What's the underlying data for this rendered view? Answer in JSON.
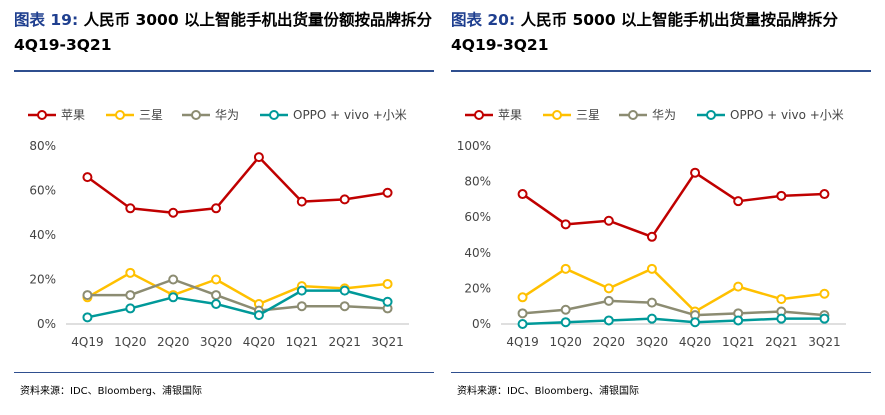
{
  "panels": [
    {
      "fig_label": "图表 19:",
      "title": "人民币 3000 以上智能手机出货量份额按品牌拆分 4Q19-3Q21",
      "source": "资料来源：IDC、Bloomberg、浦银国际"
    },
    {
      "fig_label": "图表 20:",
      "title": "人民币 5000 以上智能手机出货量按品牌拆分 4Q19-3Q21",
      "source": "资料来源：IDC、Bloomberg、浦银国际"
    }
  ],
  "chart_data": [
    {
      "type": "line",
      "title": "人民币 3000 以上智能手机出货量份额按品牌拆分 4Q19-3Q21",
      "x": [
        "4Q19",
        "1Q20",
        "2Q20",
        "3Q20",
        "4Q20",
        "1Q21",
        "2Q21",
        "3Q21"
      ],
      "ylim": [
        0,
        80
      ],
      "yticks": [
        0,
        20,
        40,
        60,
        80
      ],
      "ytick_labels": [
        "0%",
        "20%",
        "40%",
        "60%",
        "80%"
      ],
      "grid": false,
      "legend_position": "top",
      "series": [
        {
          "name": "苹果",
          "color": "#c00000",
          "values": [
            66,
            52,
            50,
            52,
            75,
            55,
            56,
            59
          ]
        },
        {
          "name": "三星",
          "color": "#ffc000",
          "values": [
            12,
            23,
            13,
            20,
            9,
            17,
            16,
            18
          ]
        },
        {
          "name": "华为",
          "color": "#8c8c72",
          "values": [
            13,
            13,
            20,
            13,
            6,
            8,
            8,
            7
          ]
        },
        {
          "name": "OPPO + vivo +小米",
          "color": "#009999",
          "values": [
            3,
            7,
            12,
            9,
            4,
            15,
            15,
            10
          ]
        }
      ]
    },
    {
      "type": "line",
      "title": "人民币 5000 以上智能手机出货量按品牌拆分 4Q19-3Q21",
      "x": [
        "4Q19",
        "1Q20",
        "2Q20",
        "3Q20",
        "4Q20",
        "1Q21",
        "2Q21",
        "3Q21"
      ],
      "ylim": [
        0,
        100
      ],
      "yticks": [
        0,
        20,
        40,
        60,
        80,
        100
      ],
      "ytick_labels": [
        "0%",
        "20%",
        "40%",
        "60%",
        "80%",
        "100%"
      ],
      "grid": false,
      "legend_position": "top",
      "series": [
        {
          "name": "苹果",
          "color": "#c00000",
          "values": [
            73,
            56,
            58,
            49,
            85,
            69,
            72,
            73
          ]
        },
        {
          "name": "三星",
          "color": "#ffc000",
          "values": [
            15,
            31,
            20,
            31,
            7,
            21,
            14,
            17
          ]
        },
        {
          "name": "华为",
          "color": "#8c8c72",
          "values": [
            6,
            8,
            13,
            12,
            5,
            6,
            7,
            5
          ]
        },
        {
          "name": "OPPO + vivo +小米",
          "color": "#009999",
          "values": [
            0,
            1,
            2,
            3,
            1,
            2,
            3,
            3
          ]
        }
      ]
    }
  ]
}
